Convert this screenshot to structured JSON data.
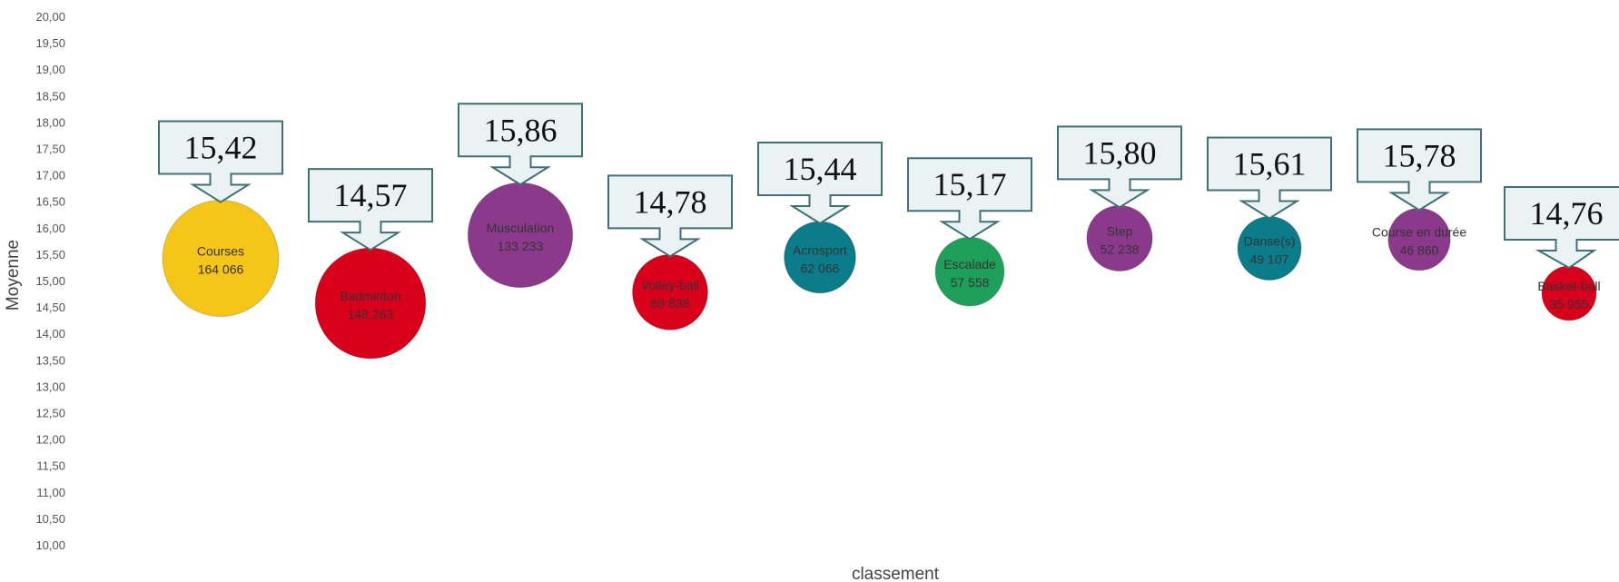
{
  "chart_data": {
    "type": "bubble",
    "xlabel": "classement",
    "ylabel": "Moyenne",
    "ylim": [
      10,
      20
    ],
    "y_ticks": [
      "10,00",
      "10,50",
      "11,00",
      "11,50",
      "12,00",
      "12,50",
      "13,00",
      "13,50",
      "14,00",
      "14,50",
      "15,00",
      "15,50",
      "16,00",
      "16,50",
      "17,00",
      "17,50",
      "18,00",
      "18,50",
      "19,00",
      "19,50",
      "20,00"
    ],
    "grid": false,
    "points": [
      {
        "name": "Courses",
        "size_label": "164 066",
        "size": 164066,
        "y": 15.42,
        "callout": "15,42",
        "color": "#F5C518"
      },
      {
        "name": "Badminton",
        "size_label": "148 263",
        "size": 148263,
        "y": 14.57,
        "callout": "14,57",
        "color": "#D8001A"
      },
      {
        "name": "Musculation",
        "size_label": "133 233",
        "size": 133233,
        "y": 15.86,
        "callout": "15,86",
        "color": "#8B3A8B"
      },
      {
        "name": "Volley-ball",
        "size_label": "68 838",
        "size": 68838,
        "y": 14.78,
        "callout": "14,78",
        "color": "#D8001A"
      },
      {
        "name": "Acrosport",
        "size_label": "62 066",
        "size": 62066,
        "y": 15.44,
        "callout": "15,44",
        "color": "#0B7C8A"
      },
      {
        "name": "Escalade",
        "size_label": "57 558",
        "size": 57558,
        "y": 15.17,
        "callout": "15,17",
        "color": "#1FA05A"
      },
      {
        "name": "Step",
        "size_label": "52 238",
        "size": 52238,
        "y": 15.8,
        "callout": "15,80",
        "color": "#8B3A8B"
      },
      {
        "name": "Danse(s)",
        "size_label": "49 107",
        "size": 49107,
        "y": 15.61,
        "callout": "15,61",
        "color": "#0B7C8A"
      },
      {
        "name": "Course en durée",
        "size_label": "46 860",
        "size": 46860,
        "y": 15.78,
        "callout": "15,78",
        "color": "#8B3A8B"
      },
      {
        "name": "Basket-ball",
        "size_label": "35 955",
        "size": 35955,
        "y": 14.76,
        "callout": "14,76",
        "color": "#D8001A"
      }
    ]
  }
}
